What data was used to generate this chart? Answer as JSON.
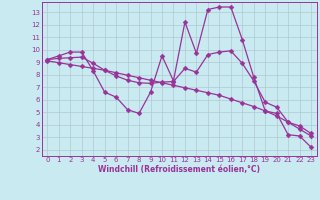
{
  "xlabel": "Windchill (Refroidissement éolien,°C)",
  "background_color": "#c8eaf0",
  "grid_color": "#b0c8d0",
  "line_color": "#993399",
  "xlim": [
    -0.5,
    23.5
  ],
  "ylim": [
    1.5,
    13.8
  ],
  "yticks": [
    2,
    3,
    4,
    5,
    6,
    7,
    8,
    9,
    10,
    11,
    12,
    13
  ],
  "xticks": [
    0,
    1,
    2,
    3,
    4,
    5,
    6,
    7,
    8,
    9,
    10,
    11,
    12,
    13,
    14,
    15,
    16,
    17,
    18,
    19,
    20,
    21,
    22,
    23
  ],
  "line1_x": [
    0,
    1,
    2,
    3,
    4,
    5,
    6,
    7,
    8,
    9,
    10,
    11,
    12,
    13,
    14,
    15,
    16,
    17,
    18,
    19,
    20,
    21,
    22,
    23
  ],
  "line1_y": [
    9.2,
    9.5,
    9.8,
    9.8,
    8.3,
    6.6,
    6.2,
    5.2,
    4.9,
    6.6,
    9.5,
    7.5,
    12.2,
    9.7,
    13.2,
    13.4,
    13.4,
    10.8,
    7.8,
    5.1,
    4.9,
    3.2,
    3.1,
    2.2
  ],
  "line2_x": [
    0,
    1,
    2,
    3,
    4,
    5,
    6,
    7,
    8,
    9,
    10,
    11,
    12,
    13,
    14,
    15,
    16,
    17,
    18,
    19,
    20,
    21,
    22,
    23
  ],
  "line2_y": [
    9.1,
    8.95,
    8.8,
    8.65,
    8.5,
    8.35,
    8.15,
    7.95,
    7.75,
    7.55,
    7.35,
    7.15,
    6.95,
    6.75,
    6.55,
    6.35,
    6.05,
    5.75,
    5.45,
    5.1,
    4.7,
    4.2,
    3.65,
    3.1
  ],
  "line3_x": [
    0,
    1,
    2,
    3,
    4,
    5,
    6,
    7,
    8,
    9,
    10,
    11,
    12,
    13,
    14,
    15,
    16,
    17,
    18,
    19,
    20,
    21,
    22,
    23
  ],
  "line3_y": [
    9.2,
    9.3,
    9.35,
    9.4,
    8.9,
    8.35,
    7.9,
    7.55,
    7.35,
    7.3,
    7.4,
    7.45,
    8.5,
    8.2,
    9.6,
    9.8,
    9.9,
    8.9,
    7.5,
    5.8,
    5.4,
    4.2,
    3.9,
    3.3
  ],
  "marker_size": 2.5,
  "line_width": 0.9,
  "tick_fontsize": 5,
  "xlabel_fontsize": 5.5
}
